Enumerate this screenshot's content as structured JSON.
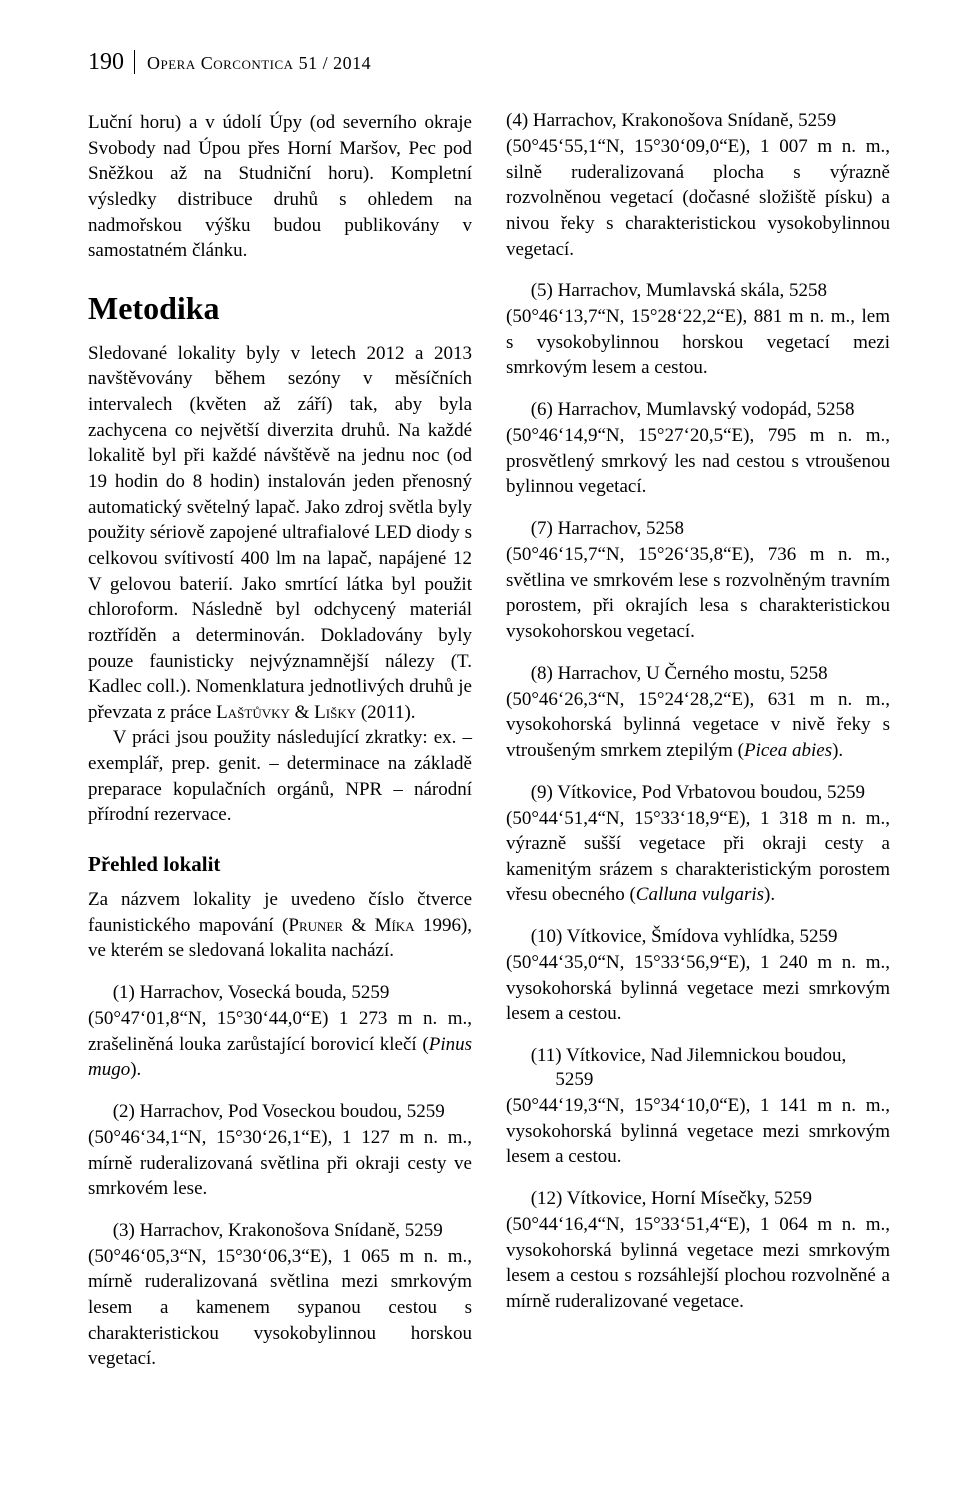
{
  "header": {
    "page_number": "190",
    "journal": "Opera Corcontica 51 / 2014"
  },
  "left": {
    "intro": "Luční horu) a v údolí Úpy (od severního okraje Svobody nad Úpou přes Horní Maršov, Pec pod Sněžkou až na Studniční horu). Kompletní výsledky distribuce druhů s ohledem na nadmořskou výšku budou publikovány v samostatném článku.",
    "metodika_title": "Metodika",
    "metodika_p1": "Sledované lokality byly v letech 2012 a 2013 navštěvovány během sezóny v měsíčních intervalech (květen až září) tak, aby byla zachycena co největší diverzita druhů. Na každé lokalitě byl při každé návštěvě na jednu noc (od 19 hodin do 8 hodin) instalován jeden přenosný automatický světelný lapač. Jako zdroj světla byly použity sériově zapojené ultrafialové LED diody s celkovou svítivostí 400 lm na lapač, napájené 12 V gelovou baterií. Jako smrtící látka byl použit chloroform. Následně byl odchycený materiál roztříděn a determinován. Dokladovány byly pouze faunisticky nejvýznamnější nálezy (T. Kadlec coll.). Nomenklatura jednotlivých druhů je převzata z práce Laštůvky & Lišky (2011).",
    "metodika_p2": "V práci jsou použity následující zkratky: ex. – exemplář, prep. genit. – determinace na základě preparace kopulačních orgánů, NPR – národní přírodní rezervace.",
    "prehled_title": "Přehled lokalit",
    "prehled_p": "Za názvem lokality je uvedeno číslo čtverce faunistického mapování (Pruner & Míka 1996), ve kterém se sledovaná lokalita nachází.",
    "loc1_head": "(1) Harrachov, Vosecká bouda, 5259",
    "loc1_body": "(50°47‘01,8“N, 15°30‘44,0“E) 1 273 m n. m., zrašeliněná louka zarůstající borovicí klečí (Pinus mugo).",
    "loc2_head": "(2) Harrachov, Pod Voseckou boudou, 5259",
    "loc2_body": "(50°46‘34,1“N, 15°30‘26,1“E), 1 127 m n. m., mírně ruderalizovaná světlina při okraji cesty ve smrkovém lese.",
    "loc3_head": "(3) Harrachov, Krakonošova Snídaně, 5259",
    "loc3_body": "(50°46‘05,3“N, 15°30‘06,3“E), 1 065 m n. m., mírně ruderalizovaná světlina mezi smrkovým lesem a kamenem sypanou cestou s charakteristickou vysokobylinnou horskou vegetací."
  },
  "right": {
    "loc4_head": "(4) Harrachov, Krakonošova Snídaně, 5259",
    "loc4_body": "(50°45‘55,1“N, 15°30‘09,0“E), 1 007 m n. m., silně ruderalizovaná plocha s výrazně rozvolněnou vegetací (dočasné složiště písku) a nivou řeky s charakteristickou vysokobylinnou vegetací.",
    "loc5_head": "(5) Harrachov, Mumlavská skála, 5258",
    "loc5_body": "(50°46‘13,7“N, 15°28‘22,2“E), 881 m n. m., lem s vysokobylinnou horskou vegetací mezi smrkovým lesem a cestou.",
    "loc6_head": "(6) Harrachov, Mumlavský vodopád, 5258",
    "loc6_body": "(50°46‘14,9“N, 15°27‘20,5“E), 795 m n. m., prosvětlený smrkový les nad cestou s vtroušenou bylinnou vegetací.",
    "loc7_head": "(7) Harrachov, 5258",
    "loc7_body": "(50°46‘15,7“N, 15°26‘35,8“E), 736 m n. m., světlina ve smrkovém lese s rozvolněným travním porostem, při okrajích lesa s charakteristickou vysokohorskou vegetací.",
    "loc8_head": "(8) Harrachov, U Černého mostu, 5258",
    "loc8_body": "(50°46‘26,3“N, 15°24‘28,2“E), 631 m n. m., vysokohorská bylinná vegetace v nivě řeky s vtroušeným smrkem ztepilým (Picea abies).",
    "loc9_head": "(9) Vítkovice, Pod Vrbatovou boudou, 5259",
    "loc9_body": "(50°44‘51,4“N, 15°33‘18,9“E), 1 318 m n. m., výrazně sušší vegetace při okraji cesty a kamenitým srázem s charakteristickým porostem vřesu obecného (Calluna vulgaris).",
    "loc10_head": "(10) Vítkovice, Šmídova vyhlídka, 5259",
    "loc10_body": "(50°44‘35,0“N, 15°33‘56,9“E), 1 240 m n. m., vysokohorská bylinná vegetace mezi smrkovým lesem a cestou.",
    "loc11_head_a": "(11) Vítkovice, Nad Jilemnickou boudou,",
    "loc11_head_b": "5259",
    "loc11_body": "(50°44‘19,3“N, 15°34‘10,0“E), 1 141 m n. m., vysokohorská bylinná vegetace mezi smrkovým lesem a cestou.",
    "loc12_head": "(12) Vítkovice, Horní Mísečky, 5259",
    "loc12_body": "(50°44‘16,4“N, 15°33‘51,4“E), 1 064 m n. m., vysokohorská bylinná vegetace mezi smrkovým lesem a cestou s rozsáhlejší plochou rozvolněné a mírně ruderalizované vegetace."
  }
}
